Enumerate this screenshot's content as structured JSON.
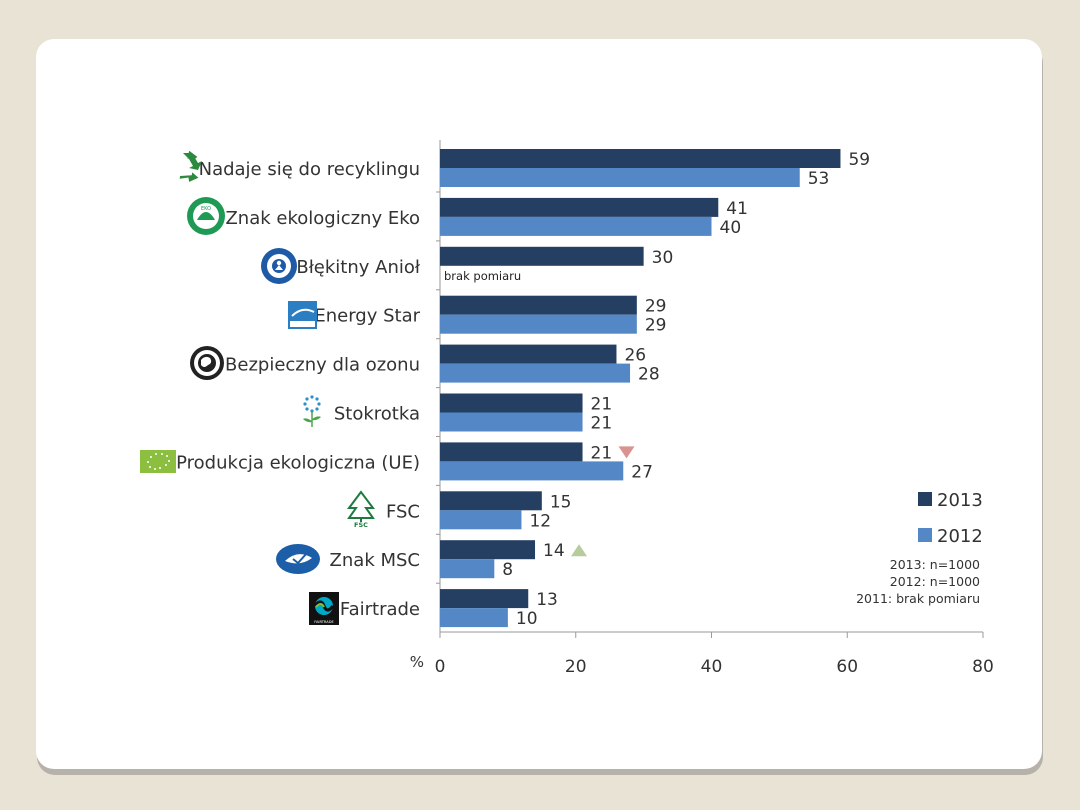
{
  "chart_data": {
    "type": "bar",
    "orientation": "horizontal",
    "categories": [
      "Nadaje się do recyklingu",
      "Znak ekologiczny Eko",
      "Błękitny Anioł",
      "Energy Star",
      "Bezpieczny dla ozonu",
      "Stokrotka",
      "Produkcja ekologiczna (UE)",
      "FSC",
      "Znak MSC",
      "Fairtrade"
    ],
    "series": [
      {
        "name": "2013",
        "color": "#253f63",
        "values": [
          59,
          41,
          30,
          29,
          26,
          21,
          21,
          15,
          14,
          13
        ]
      },
      {
        "name": "2012",
        "color": "#5487c6",
        "values": [
          53,
          40,
          null,
          29,
          28,
          21,
          27,
          12,
          8,
          10
        ]
      }
    ],
    "missing_label": "brak pomiaru",
    "change_markers": [
      {
        "category_index": 6,
        "direction": "down",
        "color": "#d99390"
      },
      {
        "category_index": 8,
        "direction": "up",
        "color": "#b7cc9c"
      }
    ],
    "xlim": [
      0,
      80
    ],
    "xticks": [
      "0",
      "20",
      "40",
      "60",
      "80"
    ],
    "axis_unit": "%",
    "legend_position": "right",
    "notes": [
      "2013: n=1000",
      "2012: n=1000",
      "2011: brak pomiaru"
    ],
    "logo_texts": {
      "eko": "EKO",
      "fsc": "FSC",
      "fairtrade": "FAIRTRADE"
    }
  }
}
